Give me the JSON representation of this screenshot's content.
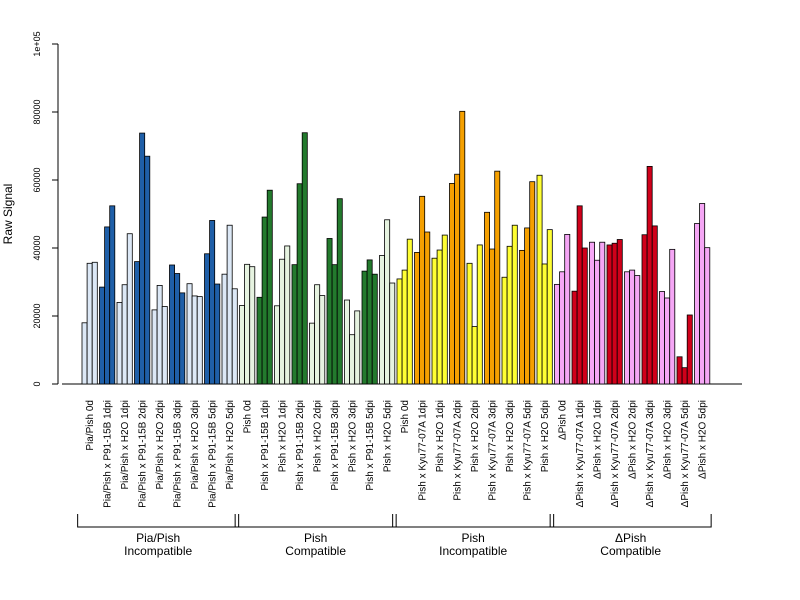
{
  "chart_data": {
    "type": "bar",
    "ylabel": "Raw Signal",
    "ylim": [
      0,
      100000
    ],
    "yticks": [
      0,
      20000,
      40000,
      60000,
      80000,
      100000
    ],
    "ytick_labels": [
      "0",
      "20000",
      "40000",
      "60000",
      "80000",
      "1e+05"
    ],
    "grid": false,
    "colors": {
      "light_blue": "#dce8f6",
      "dark_blue": "#1f5fa8",
      "light_green": "#e6f3e0",
      "dark_green": "#237a2d",
      "yellow": "#ffff33",
      "orange": "#f5a000",
      "pink": "#f5a6f5",
      "red": "#d0001a"
    },
    "categories": [
      {
        "label": "Pia/Pish 0d",
        "color": "light_blue",
        "values": [
          18000,
          35500,
          35800
        ]
      },
      {
        "label": "Pia/Pish x P91-15B 1dpi",
        "color": "dark_blue",
        "values": [
          28500,
          46200,
          52400
        ]
      },
      {
        "label": "Pia/Pish x H2O 1dpi",
        "color": "light_blue",
        "values": [
          24000,
          29200,
          44200
        ]
      },
      {
        "label": "Pia/Pish x P91-15B 2dpi",
        "color": "dark_blue",
        "values": [
          36000,
          73800,
          67000
        ]
      },
      {
        "label": "Pia/Pish x H2O 2dpi",
        "color": "light_blue",
        "values": [
          21800,
          29000,
          22800
        ]
      },
      {
        "label": "Pia/Pish x P91-15B 3dpi",
        "color": "dark_blue",
        "values": [
          35000,
          32500,
          26800
        ]
      },
      {
        "label": "Pia/Pish x H2O 3dpi",
        "color": "light_blue",
        "values": [
          29500,
          25900,
          25700
        ]
      },
      {
        "label": "Pia/Pish x P91-15B 5dpi",
        "color": "dark_blue",
        "values": [
          38300,
          48100,
          29400
        ]
      },
      {
        "label": "Pia/Pish x H2O 5dpi",
        "color": "light_blue",
        "values": [
          32300,
          46700,
          28000
        ]
      },
      {
        "label": "Pish 0d",
        "color": "light_green",
        "values": [
          23100,
          35200,
          34500
        ]
      },
      {
        "label": "Pish x P91-15B 1dpi",
        "color": "dark_green",
        "values": [
          25500,
          49100,
          57000
        ]
      },
      {
        "label": "Pish x H2O 1dpi",
        "color": "light_green",
        "values": [
          23000,
          36700,
          40600
        ]
      },
      {
        "label": "Pish x P91-15B 2dpi",
        "color": "dark_green",
        "values": [
          35100,
          58900,
          73900
        ]
      },
      {
        "label": "Pish x H2O 2dpi",
        "color": "light_green",
        "values": [
          17900,
          29200,
          26000
        ]
      },
      {
        "label": "Pish x P91-15B 3dpi",
        "color": "dark_green",
        "values": [
          42800,
          35100,
          54500
        ]
      },
      {
        "label": "Pish x H2O 3dpi",
        "color": "light_green",
        "values": [
          24700,
          14500,
          21500
        ]
      },
      {
        "label": "Pish x P91-15B 5dpi",
        "color": "dark_green",
        "values": [
          33200,
          36500,
          32300
        ]
      },
      {
        "label": "Pish x H2O 5dpi",
        "color": "light_green",
        "values": [
          37800,
          48300,
          29700
        ]
      },
      {
        "label": "Pish 0d",
        "color": "yellow",
        "values": [
          30900,
          33500,
          42600
        ]
      },
      {
        "label": "Pish x Kyu77-07A 1dpi",
        "color": "orange",
        "values": [
          38700,
          55200,
          44700
        ]
      },
      {
        "label": "Pish x H2O 1dpi",
        "color": "yellow",
        "values": [
          37000,
          39400,
          43800
        ]
      },
      {
        "label": "Pish x Kyu77-07A 2dpi",
        "color": "orange",
        "values": [
          59000,
          61700,
          80200
        ]
      },
      {
        "label": "Pish x H2O 2dpi",
        "color": "yellow",
        "values": [
          35500,
          16900,
          40900
        ]
      },
      {
        "label": "Pish x Kyu77-07A 3dpi",
        "color": "orange",
        "values": [
          50500,
          39700,
          62600
        ]
      },
      {
        "label": "Pish x H2O 3dpi",
        "color": "yellow",
        "values": [
          31400,
          40500,
          46700
        ]
      },
      {
        "label": "Pish x Kyu77-07A 5dpi",
        "color": "orange",
        "values": [
          39300,
          45900,
          59500
        ]
      },
      {
        "label": "Pish x H2O 5dpi",
        "color": "yellow",
        "values": [
          61400,
          35300,
          45400
        ]
      },
      {
        "label": "ΔPish 0d",
        "color": "pink",
        "values": [
          29300,
          33000,
          44000
        ]
      },
      {
        "label": "ΔPish x Kyu77-07A 1dpi",
        "color": "red",
        "values": [
          27300,
          52400,
          40000
        ]
      },
      {
        "label": "ΔPish x H2O 1dpi",
        "color": "pink",
        "values": [
          41700,
          36400,
          41700
        ]
      },
      {
        "label": "ΔPish x Kyu77-07A 2dpi",
        "color": "red",
        "values": [
          40900,
          41400,
          42500
        ]
      },
      {
        "label": "ΔPish x H2O 2dpi",
        "color": "pink",
        "values": [
          33000,
          33500,
          31900
        ]
      },
      {
        "label": "ΔPish x Kyu77-07A 3dpi",
        "color": "red",
        "values": [
          43900,
          64000,
          46500
        ]
      },
      {
        "label": "ΔPish x H2O 3dpi",
        "color": "pink",
        "values": [
          27200,
          25300,
          39600
        ]
      },
      {
        "label": "ΔPish x Kyu77-07A 5dpi",
        "color": "red",
        "values": [
          8000,
          4800,
          20300
        ]
      },
      {
        "label": "ΔPish x H2O 5dpi",
        "color": "pink",
        "values": [
          47200,
          53100,
          40100
        ]
      }
    ],
    "groups": [
      {
        "line1": "Pia/Pish",
        "line2": "Incompatible",
        "first": 0,
        "last": 8
      },
      {
        "line1": "Pish",
        "line2": "Compatible",
        "first": 9,
        "last": 17
      },
      {
        "line1": "Pish",
        "line2": "Incompatible",
        "first": 18,
        "last": 26
      },
      {
        "line1": "ΔPish",
        "line2": "Compatible",
        "first": 27,
        "last": 35
      }
    ]
  }
}
